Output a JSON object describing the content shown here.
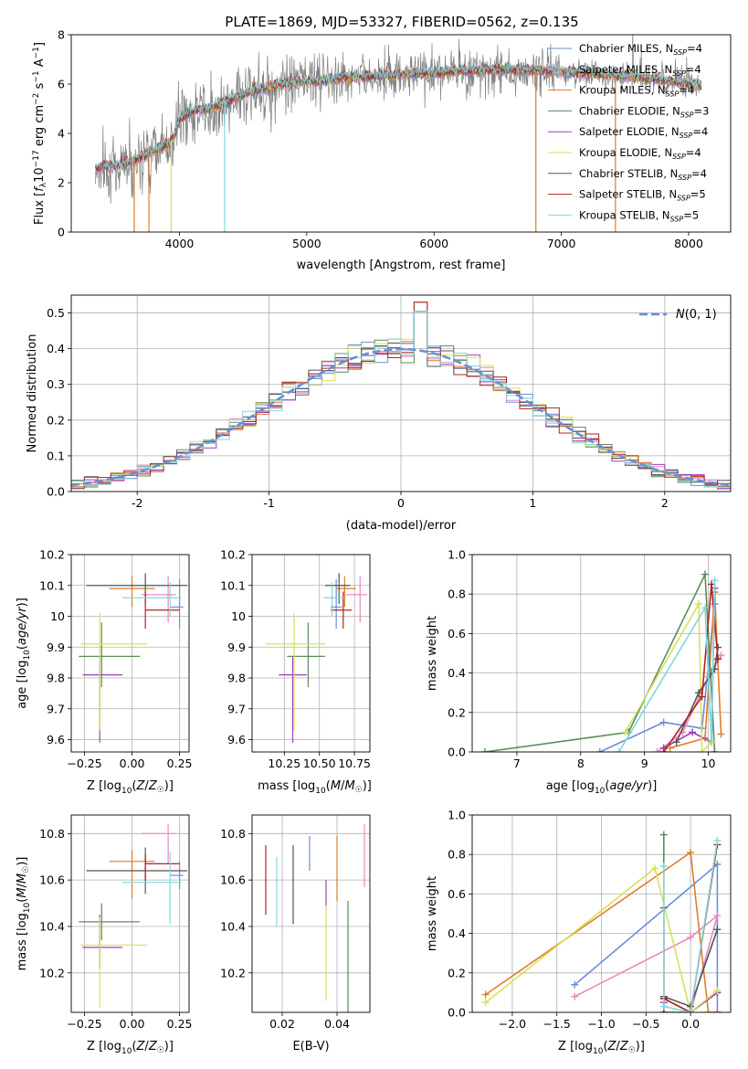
{
  "title": "PLATE=1869, MJD=53327, FIBERID=0562, z=0.135",
  "colors": [
    "#6a8fd8",
    "#e889bd",
    "#e07b2a",
    "#5b8a5b",
    "#9a3fb8",
    "#d8e05a",
    "#555555",
    "#b22222",
    "#7fd8dc"
  ],
  "gray": "#808080",
  "chart_data": [
    {
      "id": "spectrum",
      "type": "line",
      "xlabel": "wavelength [Angstrom, rest frame]",
      "ylabel": "Flux [f_λ 10^-17 erg cm^-2 s^-1 A^-1]",
      "xlim": [
        3150,
        8330
      ],
      "ylim": [
        0,
        8
      ],
      "xticks": [
        4000,
        5000,
        6000,
        7000,
        8000
      ],
      "yticks": [
        0,
        2,
        4,
        6,
        8
      ],
      "grid": false,
      "legend_loc": "upper right",
      "legend": [
        {
          "label": "Chabrier MILES, N",
          "sub": "SSP",
          "tail": "=4"
        },
        {
          "label": "Salpeter MILES, N",
          "sub": "SSP",
          "tail": "=4"
        },
        {
          "label": "Kroupa MILES, N",
          "sub": "SSP",
          "tail": "=4"
        },
        {
          "label": "Chabrier ELODIE, N",
          "sub": "SSP",
          "tail": "=3"
        },
        {
          "label": "Salpeter ELODIE, N",
          "sub": "SSP",
          "tail": "=4"
        },
        {
          "label": "Kroupa ELODIE, N",
          "sub": "SSP",
          "tail": "=4"
        },
        {
          "label": "Chabrier STELIB, N",
          "sub": "SSP",
          "tail": "=4"
        },
        {
          "label": "Salpeter STELIB, N",
          "sub": "SSP",
          "tail": "=5"
        },
        {
          "label": "Kroupa STELIB, N",
          "sub": "SSP",
          "tail": "=5"
        }
      ],
      "continuum": {
        "x": [
          3350,
          3500,
          3650,
          3800,
          3950,
          4000,
          4100,
          4300,
          4500,
          4800,
          5000,
          5300,
          5600,
          6000,
          6300,
          6600,
          7000,
          7300,
          7600,
          8000,
          8100
        ],
        "y": [
          2.6,
          2.7,
          2.9,
          3.3,
          3.7,
          4.6,
          4.9,
          5.1,
          5.6,
          6.0,
          6.1,
          6.25,
          6.35,
          6.45,
          6.55,
          6.6,
          6.5,
          6.4,
          6.3,
          6.0,
          5.9
        ]
      },
      "dips": [
        {
          "x": 3645,
          "y": 0
        },
        {
          "x": 3760,
          "y": 0
        },
        {
          "x": 3935,
          "y": 0
        },
        {
          "x": 4355,
          "y": 0
        },
        {
          "x": 6800,
          "y": 0
        },
        {
          "x": 7425,
          "y": 0
        }
      ]
    },
    {
      "id": "residuals",
      "type": "line",
      "xlabel": "(data-model)/error",
      "ylabel": "Normed distribution",
      "xlim": [
        -2.5,
        2.5
      ],
      "ylim": [
        0,
        0.55
      ],
      "xticks": [
        -2,
        -1,
        0,
        1,
        2
      ],
      "ytick_values": [
        0.0,
        0.1,
        0.2,
        0.3,
        0.4,
        0.5
      ],
      "ytick_labels": [
        "0.0",
        "0.1",
        "0.2",
        "0.3",
        "0.4",
        "0.5"
      ],
      "grid": true,
      "legend_loc": "upper right",
      "legend_label": "N(0, 1)",
      "bin_width": 0.1,
      "spike_x": 0.15,
      "spike_y": [
        0.505,
        0.53
      ]
    },
    {
      "id": "age-vs-z",
      "type": "scatter",
      "xlabel": "Z [log10(Z/Z☉)]",
      "ylabel": "age [log10(age/yr)]",
      "xlim": [
        -0.32,
        0.3
      ],
      "ylim": [
        9.56,
        10.2
      ],
      "xticks": [
        -0.25,
        0.0,
        0.25
      ],
      "xtick_labels": [
        "−0.25",
        "0.00",
        "0.25"
      ],
      "yticks": [
        9.6,
        9.7,
        9.8,
        9.9,
        10.0,
        10.1,
        10.2
      ],
      "points": [
        {
          "x": 0.25,
          "y": 10.03,
          "xerr": [
            0.05,
            0.02
          ],
          "yerr": [
            0.07,
            0.09
          ]
        },
        {
          "x": 0.19,
          "y": 10.07,
          "xerr": [
            0.14,
            0.04
          ],
          "yerr": [
            0.09,
            0.06
          ]
        },
        {
          "x": 0.0,
          "y": 10.09,
          "xerr": [
            0.12,
            0.12
          ],
          "yerr": [
            0.06,
            0.04
          ]
        },
        {
          "x": -0.16,
          "y": 9.87,
          "xerr": [
            0.12,
            0.2
          ],
          "yerr": [
            0.1,
            0.11
          ]
        },
        {
          "x": -0.17,
          "y": 9.81,
          "xerr": [
            0.09,
            0.12
          ],
          "yerr": [
            0.22,
            0.06
          ]
        },
        {
          "x": -0.17,
          "y": 9.91,
          "xerr": [
            0.1,
            0.25
          ],
          "yerr": [
            0.28,
            0.1
          ]
        },
        {
          "x": 0.07,
          "y": 10.1,
          "xerr": [
            0.31,
            0.22
          ],
          "yerr": [
            0.06,
            0.04
          ]
        },
        {
          "x": 0.07,
          "y": 10.02,
          "xerr": [
            0.0,
            0.18
          ],
          "yerr": [
            0.06,
            0.06
          ]
        },
        {
          "x": 0.2,
          "y": 10.06,
          "xerr": [
            0.25,
            0.06
          ],
          "yerr": [
            0.06,
            0.05
          ]
        }
      ]
    },
    {
      "id": "age-vs-mass",
      "type": "scatter",
      "xlabel": "mass [log10(M/M☉)]",
      "xlim": [
        10.02,
        10.86
      ],
      "ylim": [
        9.56,
        10.2
      ],
      "xticks": [
        10.25,
        10.5,
        10.75
      ],
      "xtick_labels": [
        "10.25",
        "10.50",
        "10.75"
      ],
      "yticks": [
        9.6,
        9.7,
        9.8,
        9.9,
        10.0,
        10.1,
        10.2
      ],
      "points": [
        {
          "x": 10.62,
          "y": 10.03,
          "xerr": [
            0.04,
            0.04
          ],
          "yerr": [
            0.07,
            0.09
          ]
        },
        {
          "x": 10.79,
          "y": 10.07,
          "xerr": [
            0.1,
            0.05
          ],
          "yerr": [
            0.09,
            0.06
          ]
        },
        {
          "x": 10.68,
          "y": 10.09,
          "xerr": [
            0.06,
            0.08
          ],
          "yerr": [
            0.06,
            0.04
          ]
        },
        {
          "x": 10.42,
          "y": 9.87,
          "xerr": [
            0.15,
            0.12
          ],
          "yerr": [
            0.1,
            0.11
          ]
        },
        {
          "x": 10.31,
          "y": 9.81,
          "xerr": [
            0.1,
            0.1
          ],
          "yerr": [
            0.22,
            0.06
          ]
        },
        {
          "x": 10.32,
          "y": 9.91,
          "xerr": [
            0.2,
            0.22
          ],
          "yerr": [
            0.28,
            0.1
          ]
        },
        {
          "x": 10.64,
          "y": 10.1,
          "xerr": [
            0.1,
            0.08
          ],
          "yerr": [
            0.06,
            0.04
          ]
        },
        {
          "x": 10.67,
          "y": 10.02,
          "xerr": [
            0.09,
            0.06
          ],
          "yerr": [
            0.06,
            0.06
          ]
        },
        {
          "x": 10.59,
          "y": 10.06,
          "xerr": [
            0.06,
            0.1
          ],
          "yerr": [
            0.06,
            0.05
          ]
        }
      ]
    },
    {
      "id": "mass-weight-vs-age",
      "type": "line",
      "xlabel": "age [log10(age/yr)]",
      "ylabel": "mass weight",
      "xlim": [
        6.3,
        10.35
      ],
      "ylim": [
        0,
        1
      ],
      "xticks": [
        7,
        8,
        9,
        10
      ],
      "ytick_values": [
        0.0,
        0.2,
        0.4,
        0.6,
        0.8,
        1.0
      ],
      "ytick_labels": [
        "0.0",
        "0.2",
        "0.4",
        "0.6",
        "0.8",
        "1.0"
      ],
      "grid": true,
      "series": [
        {
          "x": [
            8.3,
            9.3,
            9.9,
            10.1
          ],
          "y": [
            0.0,
            0.15,
            0.12,
            0.75
          ]
        },
        {
          "x": [
            9.2,
            9.6,
            10.0,
            10.2
          ],
          "y": [
            0.0,
            0.1,
            0.38,
            0.49
          ]
        },
        {
          "x": [
            9.4,
            9.95,
            10.1,
            10.2
          ],
          "y": [
            0.02,
            0.07,
            0.81,
            0.09
          ]
        },
        {
          "x": [
            6.5,
            8.75,
            9.95,
            10.1
          ],
          "y": [
            0.0,
            0.1,
            0.9,
            0.0
          ]
        },
        {
          "x": [
            9.3,
            9.75,
            10.05,
            10.1
          ],
          "y": [
            0.02,
            0.1,
            0.05,
            0.83
          ]
        },
        {
          "x": [
            8.7,
            9.85,
            9.9,
            10.05
          ],
          "y": [
            0.1,
            0.75,
            0.0,
            0.05
          ]
        },
        {
          "x": [
            9.5,
            9.85,
            10.1,
            10.15
          ],
          "y": [
            0.05,
            0.3,
            0.42,
            0.53
          ]
        },
        {
          "x": [
            9.3,
            9.9,
            10.05,
            10.15
          ],
          "y": [
            0.0,
            0.28,
            0.85,
            0.47
          ]
        },
        {
          "x": [
            8.6,
            9.95,
            10.05,
            10.1
          ],
          "y": [
            0.0,
            0.73,
            0.06,
            0.87
          ]
        }
      ]
    },
    {
      "id": "mass-vs-z",
      "type": "scatter",
      "xlabel": "Z [log10(Z/Z☉)]",
      "ylabel": "mass [log10(M/M☉)]",
      "xlim": [
        -0.32,
        0.3
      ],
      "ylim": [
        10.03,
        10.88
      ],
      "xticks": [
        -0.25,
        0.0,
        0.25
      ],
      "xtick_labels": [
        "−0.25",
        "0.00",
        "0.25"
      ],
      "yticks": [
        10.2,
        10.4,
        10.6,
        10.8
      ],
      "points": [
        {
          "x": 0.25,
          "y": 10.62,
          "xerr": [
            0.05,
            0.02
          ],
          "yerr": [
            0.06,
            0.06
          ]
        },
        {
          "x": 0.19,
          "y": 10.8,
          "xerr": [
            0.14,
            0.04
          ],
          "yerr": [
            0.13,
            0.04
          ]
        },
        {
          "x": 0.0,
          "y": 10.68,
          "xerr": [
            0.12,
            0.12
          ],
          "yerr": [
            0.16,
            0.05
          ]
        },
        {
          "x": -0.16,
          "y": 10.42,
          "xerr": [
            0.12,
            0.2
          ],
          "yerr": [
            0.08,
            0.08
          ]
        },
        {
          "x": -0.17,
          "y": 10.31,
          "xerr": [
            0.09,
            0.12
          ],
          "yerr": [
            0.09,
            0.14
          ]
        },
        {
          "x": -0.17,
          "y": 10.32,
          "xerr": [
            0.1,
            0.25
          ],
          "yerr": [
            0.27,
            0.12
          ]
        },
        {
          "x": 0.07,
          "y": 10.64,
          "xerr": [
            0.31,
            0.22
          ],
          "yerr": [
            0.1,
            0.1
          ]
        },
        {
          "x": 0.07,
          "y": 10.67,
          "xerr": [
            0.0,
            0.18
          ],
          "yerr": [
            0.07,
            0.04
          ]
        },
        {
          "x": 0.2,
          "y": 10.59,
          "xerr": [
            0.25,
            0.06
          ],
          "yerr": [
            0.18,
            0.13
          ]
        }
      ]
    },
    {
      "id": "mass-vs-ebv",
      "type": "scatter",
      "xlabel": "E(B-V)",
      "xlim": [
        0.009,
        0.052
      ],
      "ylim": [
        10.03,
        10.88
      ],
      "xticks": [
        0.02,
        0.04
      ],
      "xtick_labels": [
        "0.02",
        "0.04"
      ],
      "yticks": [
        10.2,
        10.4,
        10.6,
        10.8
      ],
      "points": [
        {
          "x": 0.03,
          "y": 10.7,
          "yerr": [
            0.06,
            0.09
          ]
        },
        {
          "x": 0.05,
          "y": 10.7,
          "yerr": [
            0.13,
            0.14
          ]
        },
        {
          "x": 0.04,
          "y": 10.67,
          "yerr": [
            0.16,
            0.12
          ]
        },
        {
          "x": 0.044,
          "y": 10.3,
          "yerr": [
            0.27,
            0.21
          ]
        },
        {
          "x": 0.036,
          "y": 10.52,
          "yerr": [
            0.04,
            0.08
          ]
        },
        {
          "x": 0.036,
          "y": 10.28,
          "yerr": [
            0.2,
            0.21
          ]
        },
        {
          "x": 0.024,
          "y": 10.6,
          "yerr": [
            0.19,
            0.15
          ]
        },
        {
          "x": 0.014,
          "y": 10.6,
          "yerr": [
            0.15,
            0.15
          ]
        },
        {
          "x": 0.018,
          "y": 10.55,
          "yerr": [
            0.15,
            0.15
          ]
        }
      ]
    },
    {
      "id": "mass-weight-vs-z",
      "type": "line",
      "xlabel": "Z [log10(Z/Z☉)]",
      "ylabel": "mass weight",
      "xlim": [
        -2.45,
        0.45
      ],
      "ylim": [
        0,
        1
      ],
      "xticks": [
        -2.0,
        -1.5,
        -1.0,
        -0.5,
        0.0
      ],
      "xtick_labels": [
        "−2.0",
        "−1.5",
        "−1.0",
        "−0.5",
        "0.0"
      ],
      "ytick_values": [
        0.0,
        0.2,
        0.4,
        0.6,
        0.8,
        1.0
      ],
      "ytick_labels": [
        "0.0",
        "0.2",
        "0.4",
        "0.6",
        "0.8",
        "1.0"
      ],
      "grid": true,
      "series": [
        {
          "x": [
            -1.3,
            0.3,
            0.3,
            0.3
          ],
          "y": [
            0.14,
            0.75,
            0.0,
            0.0
          ]
        },
        {
          "x": [
            -1.3,
            0.0,
            0.3,
            0.0
          ],
          "y": [
            0.08,
            0.38,
            0.49,
            0.0
          ]
        },
        {
          "x": [
            -2.3,
            0.0,
            0.2,
            0.3
          ],
          "y": [
            0.09,
            0.81,
            0.0,
            0.0
          ]
        },
        {
          "x": [
            -0.3,
            -0.3,
            0.0,
            0.3
          ],
          "y": [
            0.9,
            0.0,
            0.0,
            0.1
          ]
        },
        {
          "x": [
            -0.3,
            -0.3,
            0.0,
            0.3
          ],
          "y": [
            0.05,
            0.07,
            0.0,
            0.1
          ]
        },
        {
          "x": [
            -2.3,
            -0.4,
            0.0,
            0.3
          ],
          "y": [
            0.05,
            0.73,
            0.0,
            0.11
          ]
        },
        {
          "x": [
            -0.3,
            -0.3,
            0.0,
            0.3
          ],
          "y": [
            0.53,
            0.08,
            0.03,
            0.42
          ]
        },
        {
          "x": [
            -0.3,
            -0.3,
            0.0,
            0.3
          ],
          "y": [
            0.0,
            0.07,
            0.0,
            0.85
          ]
        },
        {
          "x": [
            -0.3,
            -0.3,
            0.0,
            0.3
          ],
          "y": [
            0.74,
            0.03,
            0.0,
            0.87
          ]
        }
      ]
    }
  ]
}
